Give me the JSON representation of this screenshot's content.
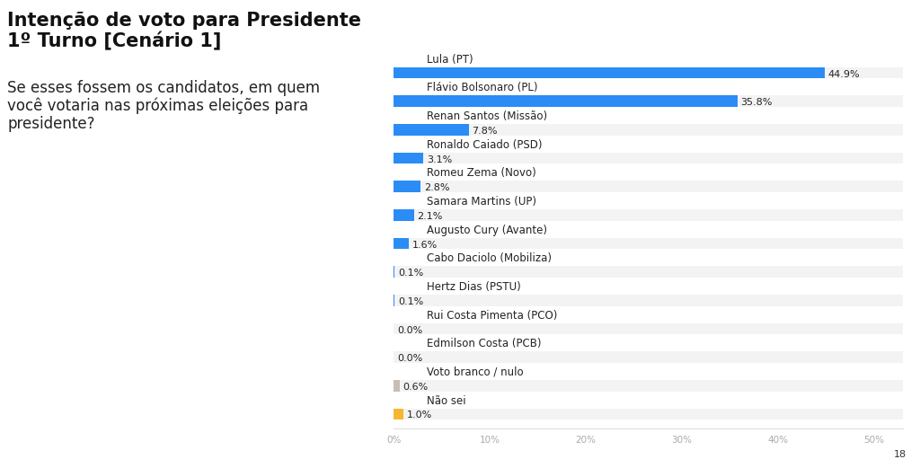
{
  "chart_data": {
    "type": "bar",
    "orientation": "horizontal",
    "title": "Intenção de voto para Presidente\n1º Turno [Cenário 1]",
    "subtitle": "Se esses fossem os candidatos, em quem\nvocê votaria nas próximas eleições para\npresidente?",
    "annotations": [
      "18"
    ],
    "categories": [
      "Lula (PT)",
      "Flávio Bolsonaro (PL)",
      "Renan Santos (Missão)",
      "Ronaldo Caiado (PSD)",
      "Romeu Zema (Novo)",
      "Samara Martins (UP)",
      "Augusto Cury (Avante)",
      "Cabo Daciolo (Mobiliza)",
      "Hertz Dias (PSTU)",
      "Rui Costa Pimenta (PCO)",
      "Edmilson Costa (PCB)",
      "Voto branco / nulo",
      "Não sei"
    ],
    "values": [
      44.9,
      35.8,
      7.8,
      3.1,
      2.8,
      2.1,
      1.6,
      0.1,
      0.1,
      0.0,
      0.0,
      0.6,
      1.0
    ],
    "value_labels": [
      "44.9%",
      "35.8%",
      "7.8%",
      "3.1%",
      "2.8%",
      "2.1%",
      "1.6%",
      "0.1%",
      "0.1%",
      "0.0%",
      "0.0%",
      "0.6%",
      "1.0%"
    ],
    "colors": [
      "#2b8cf5",
      "#2b8cf5",
      "#2b8cf5",
      "#2b8cf5",
      "#2b8cf5",
      "#2b8cf5",
      "#2b8cf5",
      "#2b8cf5",
      "#2b8cf5",
      "#2b8cf5",
      "#2b8cf5",
      "#c9bdb4",
      "#f5b731"
    ],
    "xlim": [
      0,
      53
    ],
    "xticks": [
      {
        "value": 0,
        "label": "0%"
      },
      {
        "value": 10,
        "label": "10%"
      },
      {
        "value": 20,
        "label": "20%"
      },
      {
        "value": 30,
        "label": "30%"
      },
      {
        "value": 40,
        "label": "40%"
      },
      {
        "value": 50,
        "label": "50%"
      }
    ],
    "grid": false,
    "data_labels": true,
    "tick_labels": "x"
  }
}
